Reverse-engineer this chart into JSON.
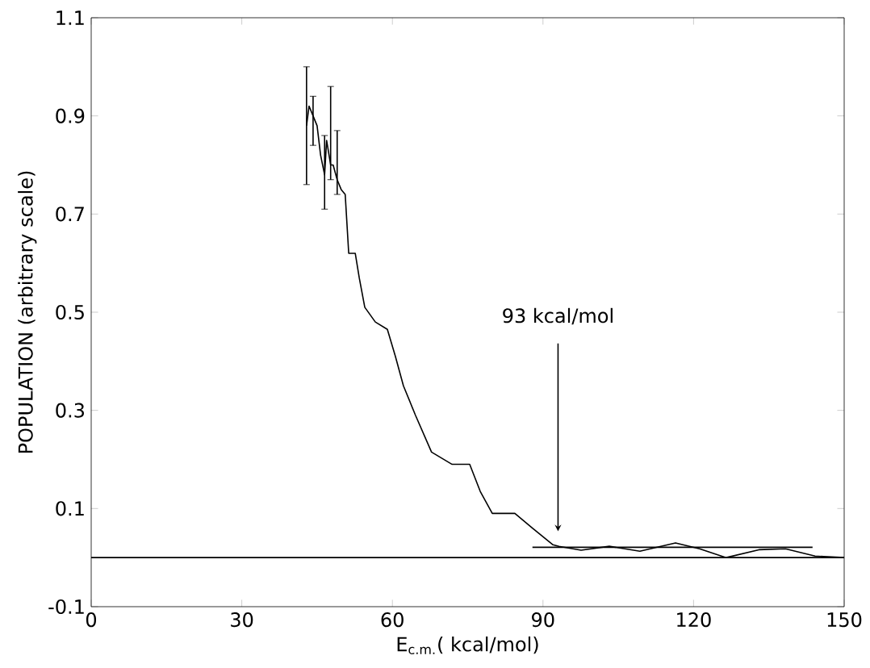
{
  "chart_data": {
    "type": "line",
    "xlabel": "E$_{c.m.}$( kcal/mol)",
    "ylabel": "POPULATION  (arbitrary scale)",
    "xlim": [
      0,
      150
    ],
    "xticks": [
      0,
      30,
      60,
      90,
      120,
      150
    ],
    "ylim": [
      -0.1,
      1.1
    ],
    "yticks": [
      -0.1,
      0.1,
      0.3,
      0.5,
      0.7,
      0.9,
      1.1
    ],
    "series": [
      {
        "color": "#000000",
        "x": [
          42.9,
          43.4,
          44.2,
          45.0,
          45.7,
          46.5,
          46.9,
          47.7,
          48.2,
          49.0,
          49.8,
          50.6,
          51.3,
          52.6,
          53.4,
          54.5,
          56.6,
          59.0,
          60.6,
          62.2,
          64.6,
          67.8,
          71.9,
          75.4,
          77.5,
          79.9,
          84.4,
          87.9,
          92.0,
          93.2,
          97.6,
          103.2,
          109.3,
          116.4,
          121.2,
          126.5,
          133.0,
          138.3,
          144.2,
          150.0
        ],
        "values": [
          0.88,
          0.92,
          0.9,
          0.88,
          0.82,
          0.78,
          0.85,
          0.8,
          0.8,
          0.77,
          0.75,
          0.74,
          0.62,
          0.62,
          0.57,
          0.51,
          0.48,
          0.465,
          0.41,
          0.35,
          0.29,
          0.215,
          0.19,
          0.19,
          0.135,
          0.09,
          0.09,
          0.06,
          0.026,
          0.023,
          0.015,
          0.023,
          0.013,
          0.03,
          0.018,
          0.0,
          0.016,
          0.018,
          0.003,
          0.0
        ],
        "errors": [
          [
            0.76,
            1.0
          ],
          null,
          [
            0.84,
            0.94
          ],
          null,
          null,
          [
            0.71,
            0.86
          ],
          null,
          [
            0.77,
            0.96
          ],
          null,
          [
            0.74,
            0.87
          ],
          null,
          null,
          null,
          null,
          null,
          null,
          null,
          null,
          null,
          null,
          null,
          null,
          null,
          null,
          null,
          null,
          null,
          null,
          null,
          null,
          null,
          null,
          null,
          null,
          null,
          null,
          null,
          null,
          null,
          null
        ]
      },
      {
        "color": "#000000",
        "x": [
          87.9,
          143.7
        ],
        "values": [
          0.021,
          0.021
        ]
      }
    ],
    "ref_lines": [
      {
        "axis": "y",
        "value": 0
      }
    ],
    "annotations": [
      "93 kcal/mol"
    ]
  }
}
